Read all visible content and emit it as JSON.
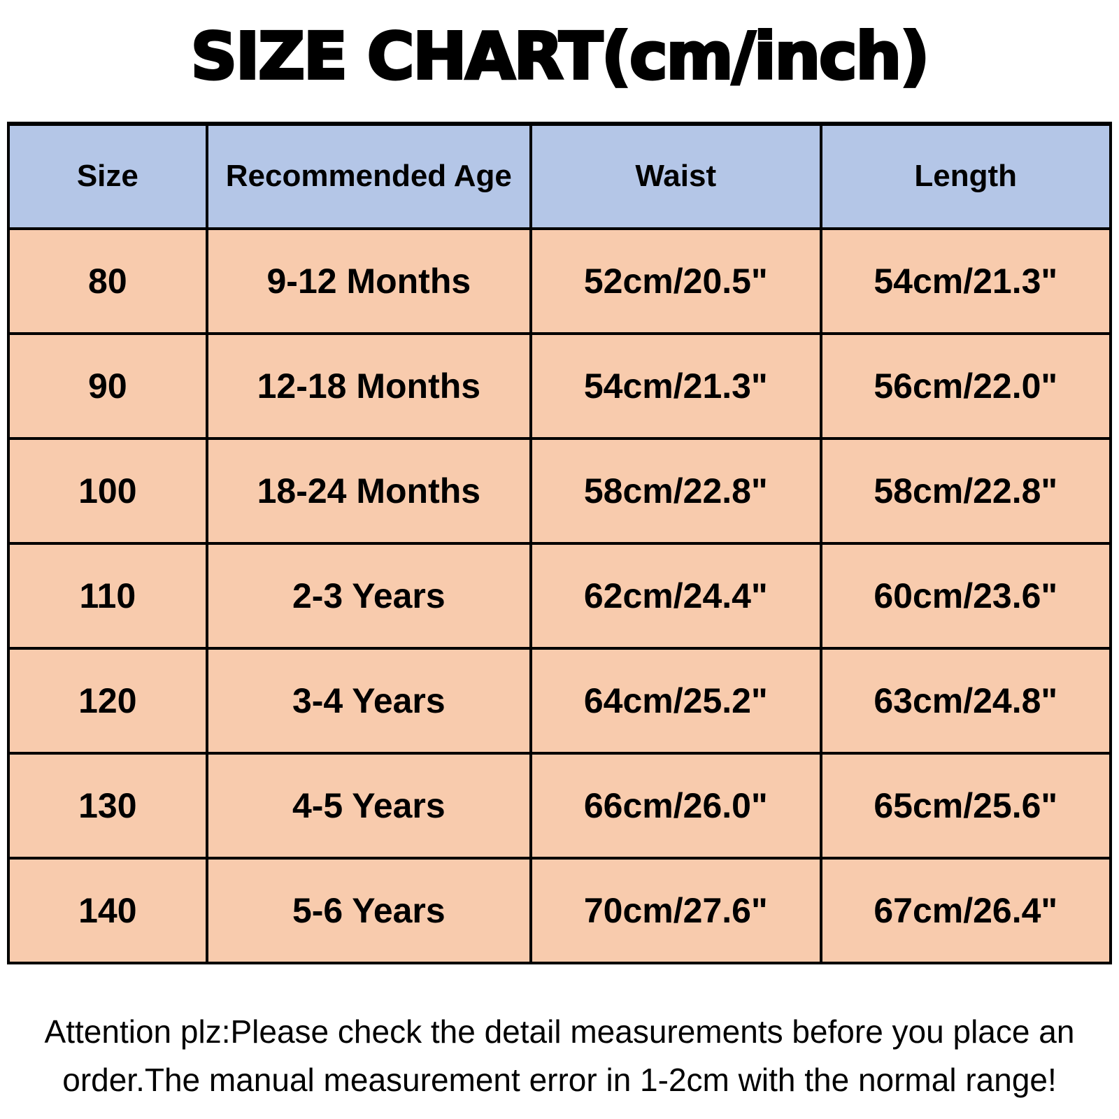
{
  "page": {
    "title": "SIZE CHART(cm/inch)",
    "note": "Attention plz:Please check the detail measurements before you place an order.The manual measurement error in 1-2cm with the normal range!"
  },
  "colors": {
    "header_bg": "#b4c6e7",
    "row_bg": "#f8cbad",
    "border": "#000000",
    "text": "#000000",
    "background": "#ffffff"
  },
  "chart_data": {
    "type": "table",
    "title": "SIZE CHART(cm/inch)",
    "columns": [
      "Size",
      "Recommended Age",
      "Waist",
      "Length"
    ],
    "rows": [
      [
        "80",
        "9-12 Months",
        "52cm/20.5\"",
        "54cm/21.3\""
      ],
      [
        "90",
        "12-18 Months",
        "54cm/21.3\"",
        "56cm/22.0\""
      ],
      [
        "100",
        "18-24 Months",
        "58cm/22.8\"",
        "58cm/22.8\""
      ],
      [
        "110",
        "2-3 Years",
        "62cm/24.4\"",
        "60cm/23.6\""
      ],
      [
        "120",
        "3-4 Years",
        "64cm/25.2\"",
        "63cm/24.8\""
      ],
      [
        "130",
        "4-5 Years",
        "66cm/26.0\"",
        "65cm/25.6\""
      ],
      [
        "140",
        "5-6 Years",
        "70cm/27.6\"",
        "67cm/26.4\""
      ]
    ]
  }
}
